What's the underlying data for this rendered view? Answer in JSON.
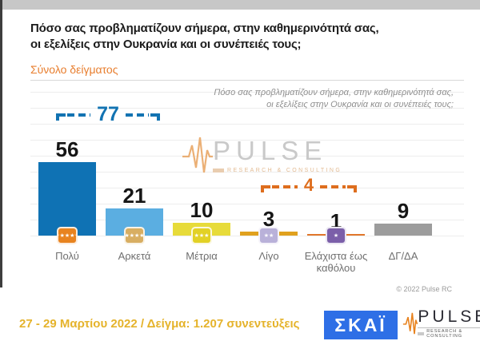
{
  "page": {
    "title_line1": "Πόσο σας προβληματίζουν σήμερα, στην καθημερινότητά σας,",
    "title_line2": "οι εξελίξεις στην Ουκρανία και οι συνέπειές τους;",
    "subtitle": "Σύνολο δείγματος",
    "question_note_line1": "Πόσο σας προβληματίζουν σήμερα, στην καθημερινότητά σας,",
    "question_note_line2": "οι εξελίξεις στην Ουκρανία και οι συνέπειές τους;",
    "copyright": "© 2022 Pulse RC",
    "footer_note": "27 - 29 Μαρτίου 2022 / Δείγμα: 1.207 συνεντεύξεις"
  },
  "logos": {
    "skai_label": "ΣΚΑΪ",
    "pulse_label": "PULSE",
    "pulse_sub": "RESEARCH & CONSULTING"
  },
  "watermark": {
    "label": "PULSE",
    "sub": "RESEARCH & CONSULTING"
  },
  "chart_data": {
    "type": "bar",
    "title": "Πόσο σας προβληματίζουν σήμερα, στην καθημερινότητά σας, οι εξελίξεις στην Ουκρανία και οι συνέπειές τους;",
    "categories": [
      "Πολύ",
      "Αρκετά",
      "Μέτρια",
      "Λίγο",
      "Ελάχιστα έως καθόλου",
      "ΔΓ/ΔΑ"
    ],
    "values": [
      56,
      21,
      10,
      3,
      1,
      9
    ],
    "bar_colors": [
      "#0f72b4",
      "#5baee1",
      "#e7db3a",
      "#e0a11e",
      "#e1772b",
      "#9c9c9c"
    ],
    "icon_colors": [
      "#e8831f",
      "#d8ae62",
      "#e2d125",
      "#b9b1d9",
      "#7b5fa9",
      null
    ],
    "icon_star_counts": [
      5,
      4,
      3,
      2,
      1,
      0
    ],
    "ylim": [
      0,
      60
    ],
    "grid": true,
    "legend": false,
    "annotations": [
      {
        "label": "77",
        "value": 77,
        "covers": [
          "Πολύ",
          "Αρκετά"
        ],
        "color": "#1273b2"
      },
      {
        "label": "4",
        "value": 4,
        "covers": [
          "Λίγο",
          "Ελάχιστα έως καθόλου"
        ],
        "color": "#de6e1e"
      }
    ]
  }
}
